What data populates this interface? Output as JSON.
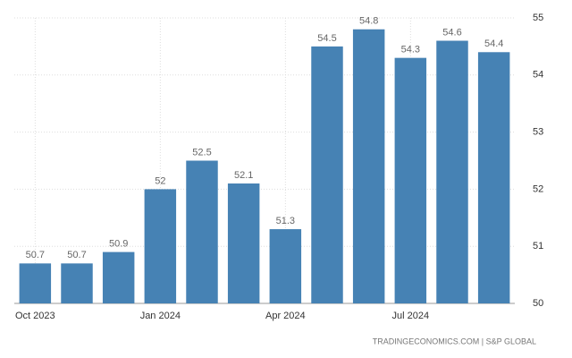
{
  "chart_data": {
    "type": "bar",
    "categories": [
      "Oct 2023",
      null,
      null,
      "Jan 2024",
      null,
      null,
      "Apr 2024",
      null,
      null,
      "Jul 2024",
      null,
      null
    ],
    "values": [
      50.7,
      50.7,
      50.9,
      52,
      52.5,
      52.1,
      51.3,
      54.5,
      54.8,
      54.3,
      54.6,
      54.4
    ],
    "color": "#4682b4",
    "ylim": [
      50,
      55
    ],
    "yticks": [
      50,
      51,
      52,
      53,
      54,
      55
    ],
    "grid": true,
    "source": "TRADINGECONOMICS.COM | S&P GLOBAL"
  }
}
